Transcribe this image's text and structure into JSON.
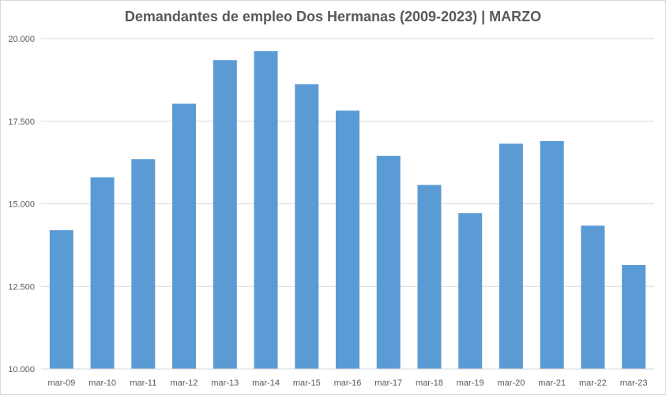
{
  "chart_data": {
    "type": "bar",
    "title": "Demandantes de empleo Dos Hermanas (2009-2023) | MARZO",
    "categories": [
      "mar-09",
      "mar-10",
      "mar-11",
      "mar-12",
      "mar-13",
      "mar-14",
      "mar-15",
      "mar-16",
      "mar-17",
      "mar-18",
      "mar-19",
      "mar-20",
      "mar-21",
      "mar-22",
      "mar-23"
    ],
    "values": [
      14200,
      15800,
      16350,
      18030,
      19350,
      19620,
      18620,
      17820,
      16450,
      15570,
      14720,
      16820,
      16900,
      14340,
      13150
    ],
    "ylim": [
      10000,
      20000
    ],
    "yticks": [
      "10.000",
      "12.500",
      "15.000",
      "17.500",
      "20.000"
    ],
    "grid": true,
    "legend": "none",
    "bar_color": "#5b9bd5"
  }
}
